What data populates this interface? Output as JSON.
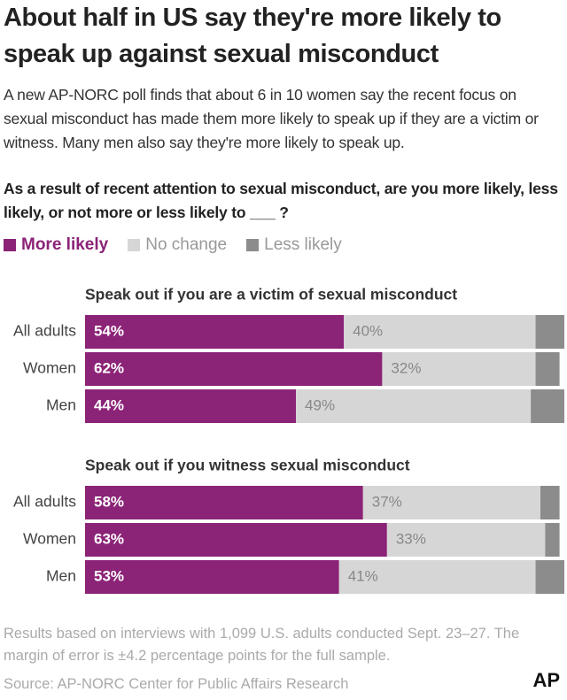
{
  "header": {
    "title": "About half in US say they're more likely to speak up against sexual misconduct",
    "subtitle": "A new AP-NORC poll finds that about 6 in 10 women say the recent focus on sexual misconduct has made them more likely to speak up if they are a victim or witness. Many men also say they're more likely to speak up.",
    "question": "As a result of recent attention to sexual misconduct, are you more likely, less likely, or not more or less likely to ___ ?"
  },
  "chart_data": {
    "type": "bar",
    "orientation": "horizontal",
    "stacked": true,
    "xlim": [
      0,
      100
    ],
    "panels": [
      {
        "title": "Speak out if you are a victim of sexual misconduct",
        "categories": [
          "All adults",
          "Women",
          "Men"
        ]
      },
      {
        "title": "Speak out if you witness sexual misconduct",
        "categories": [
          "All adults",
          "Women",
          "Men"
        ]
      }
    ],
    "series": [
      {
        "name": "More likely",
        "color": "#8b2377",
        "label_color": "#ffffff",
        "values": [
          [
            54,
            62,
            44
          ],
          [
            58,
            63,
            53
          ]
        ],
        "value_labels": [
          [
            "54%",
            "62%",
            "44%"
          ],
          [
            "58%",
            "63%",
            "53%"
          ]
        ]
      },
      {
        "name": "No change",
        "color": "#d6d6d6",
        "label_color": "#888888",
        "values": [
          [
            40,
            32,
            49
          ],
          [
            37,
            33,
            41
          ]
        ],
        "value_labels": [
          [
            "40%",
            "32%",
            "49%"
          ],
          [
            "37%",
            "33%",
            "41%"
          ]
        ]
      },
      {
        "name": "Less likely",
        "color": "#8c8c8c",
        "values": [
          [
            6,
            5,
            7
          ],
          [
            4,
            3,
            6
          ]
        ]
      }
    ]
  },
  "footer": {
    "note": "Results based on interviews with 1,099 U.S. adults conducted Sept. 23–27. The margin of error is ±4.2 percentage points for the full sample.",
    "source": "Source: AP-NORC Center for Public Affairs Research",
    "logo": "AP"
  }
}
